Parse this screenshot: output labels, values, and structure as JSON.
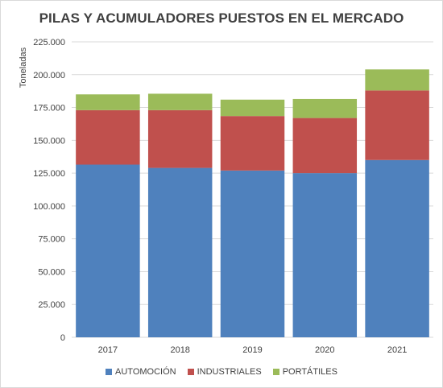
{
  "chart_data": {
    "type": "bar",
    "stacked": true,
    "title": "PILAS Y ACUMULADORES PUESTOS EN EL MERCADO",
    "xlabel": "",
    "ylabel": "Toneladas",
    "categories": [
      "2017",
      "2018",
      "2019",
      "2020",
      "2021"
    ],
    "series": [
      {
        "name": "AUTOMOCIÓN",
        "color": "#4f81bd",
        "values": [
          131500,
          129000,
          127000,
          125000,
          135000
        ]
      },
      {
        "name": "INDUSTRIALES",
        "color": "#c0504d",
        "values": [
          41500,
          44000,
          41500,
          42000,
          53000
        ]
      },
      {
        "name": "PORTÁTILES",
        "color": "#9bbb59",
        "values": [
          12000,
          12500,
          12500,
          14500,
          16000
        ]
      }
    ],
    "ylim": [
      0,
      225000
    ],
    "yticks": [
      "0",
      "25.000",
      "50.000",
      "75.000",
      "100.000",
      "125.000",
      "150.000",
      "175.000",
      "200.000",
      "225.000"
    ],
    "grid": true,
    "legend": "bottom"
  }
}
